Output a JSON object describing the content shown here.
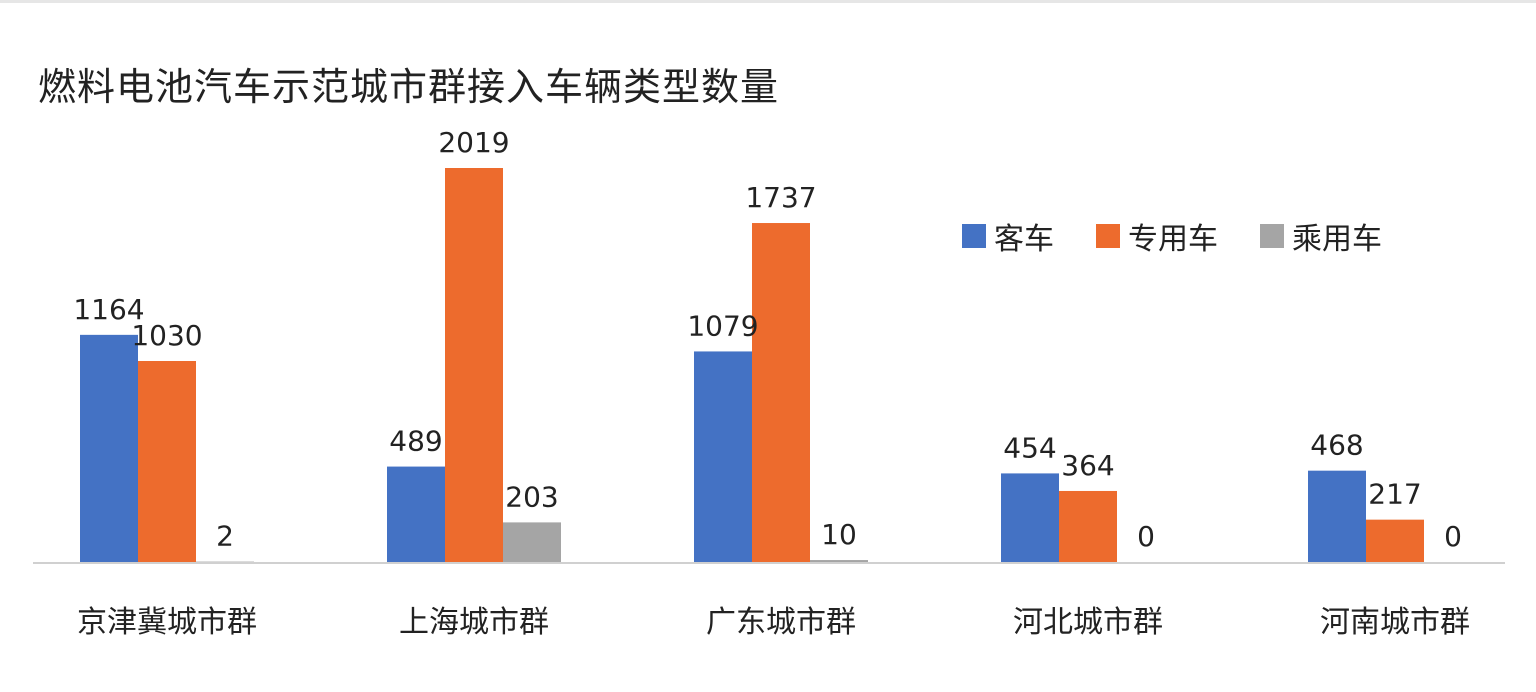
{
  "title": "燃料电池汽车示范城市群接入车辆类型数量",
  "legend": [
    {
      "label": "客车",
      "color": "#4472C4"
    },
    {
      "label": "专用车",
      "color": "#ED6B2D"
    },
    {
      "label": "乘用车",
      "color": "#A5A5A5"
    }
  ],
  "chart_data": {
    "type": "bar",
    "title": "燃料电池汽车示范城市群接入车辆类型数量",
    "categories": [
      "京津冀城市群",
      "上海城市群",
      "广东城市群",
      "河北城市群",
      "河南城市群"
    ],
    "series": [
      {
        "name": "客车",
        "color": "#4472C4",
        "values": [
          1164,
          489,
          1079,
          454,
          468
        ]
      },
      {
        "name": "专用车",
        "color": "#ED6B2D",
        "values": [
          1030,
          2019,
          1737,
          364,
          217
        ]
      },
      {
        "name": "乘用车",
        "color": "#A5A5A5",
        "values": [
          2,
          203,
          10,
          0,
          0
        ]
      }
    ],
    "ylim": [
      0,
      2100
    ],
    "grid": false,
    "legend_position": "top-right",
    "data_labels": true
  }
}
